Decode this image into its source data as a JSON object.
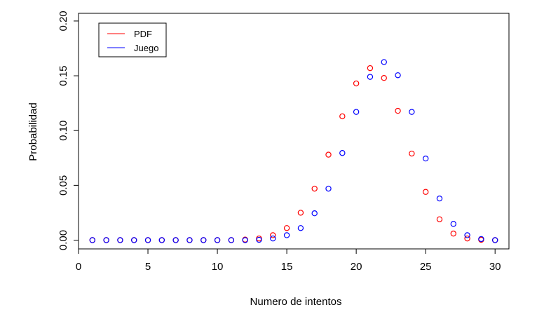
{
  "chart_data": {
    "type": "scatter",
    "title": "",
    "xlabel": "Numero de intentos",
    "ylabel": "Probabilidad",
    "xlim": [
      0,
      31
    ],
    "ylim": [
      -0.008,
      0.207
    ],
    "x_ticks": [
      0,
      5,
      10,
      15,
      20,
      25,
      30
    ],
    "x_tick_labels": [
      "0",
      "5",
      "10",
      "15",
      "20",
      "25",
      "30"
    ],
    "y_ticks": [
      0.0,
      0.05,
      0.1,
      0.15,
      0.2
    ],
    "y_tick_labels": [
      "0.00",
      "0.05",
      "0.10",
      "0.15",
      "0.20"
    ],
    "grid": false,
    "legend_position": "top-left",
    "series": [
      {
        "name": "PDF",
        "color": "#ff0000",
        "marker": "open-circle",
        "x": [
          1,
          2,
          3,
          4,
          5,
          6,
          7,
          8,
          9,
          10,
          11,
          12,
          13,
          14,
          15,
          16,
          17,
          18,
          19,
          20,
          21,
          22,
          23,
          24,
          25,
          26,
          27,
          28,
          29,
          30
        ],
        "y": [
          0,
          0,
          0,
          0,
          0,
          0,
          0,
          0,
          0,
          0,
          0,
          0.0005,
          0.0015,
          0.0045,
          0.011,
          0.025,
          0.047,
          0.078,
          0.113,
          0.143,
          0.157,
          0.148,
          0.118,
          0.079,
          0.044,
          0.019,
          0.006,
          0.0015,
          0.0003,
          0
        ]
      },
      {
        "name": "Juego",
        "color": "#0000ff",
        "marker": "open-circle",
        "x": [
          1,
          2,
          3,
          4,
          5,
          6,
          7,
          8,
          9,
          10,
          11,
          12,
          13,
          14,
          15,
          16,
          17,
          18,
          19,
          20,
          21,
          22,
          23,
          24,
          25,
          26,
          27,
          28,
          29,
          30
        ],
        "y": [
          0,
          0,
          0,
          0,
          0,
          0,
          0,
          0,
          0,
          0,
          0,
          0,
          0.0003,
          0.0015,
          0.0045,
          0.011,
          0.0245,
          0.047,
          0.0795,
          0.117,
          0.149,
          0.1625,
          0.1505,
          0.117,
          0.0745,
          0.038,
          0.0148,
          0.0045,
          0.001,
          0
        ]
      }
    ]
  }
}
